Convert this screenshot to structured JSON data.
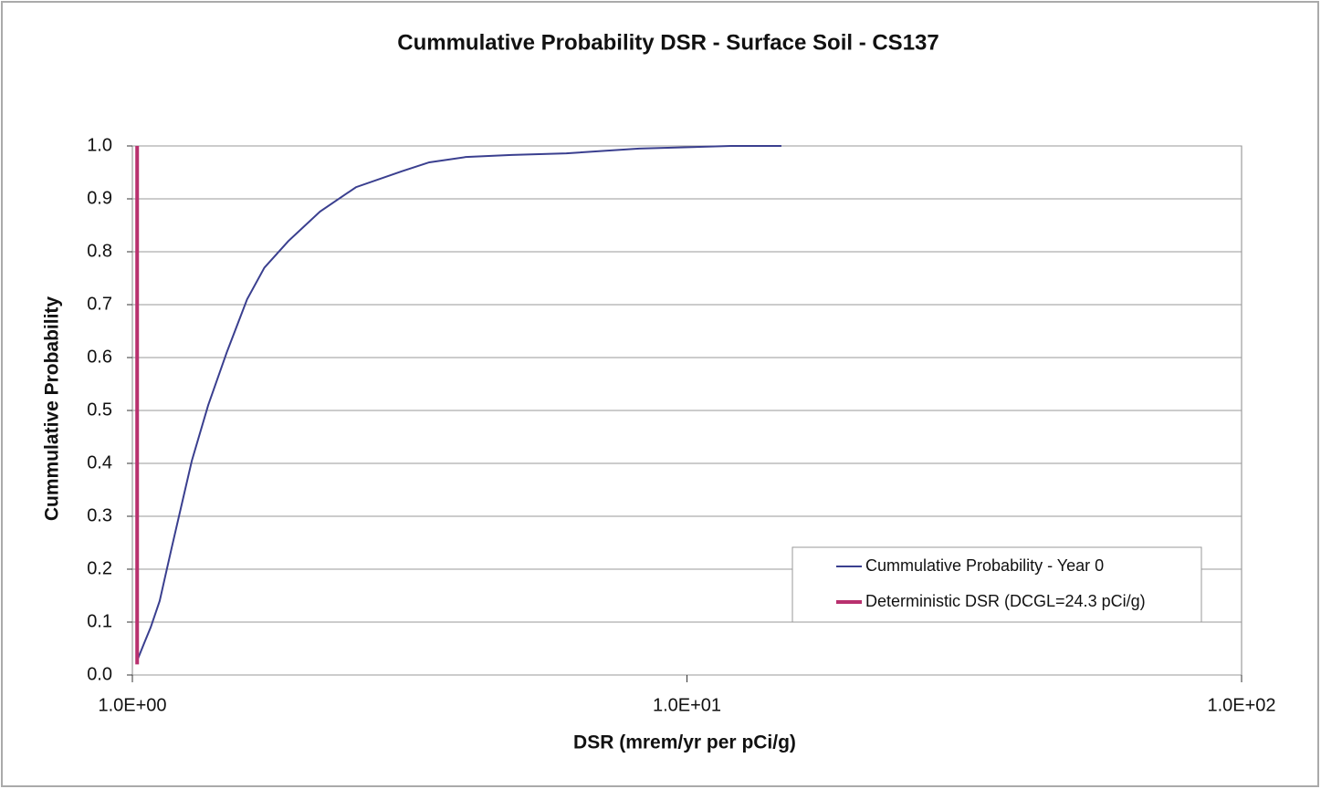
{
  "chart_data": {
    "type": "line",
    "title": "Cummulative Probability DSR - Surface Soil - CS137",
    "x_label": "DSR (mrem/yr per pCi/g)",
    "y_label": "Cummulative Probability",
    "xscale": "log",
    "xlim": [
      1,
      100
    ],
    "xticks": [
      {
        "value": 1,
        "label": "1.0E+00"
      },
      {
        "value": 10,
        "label": "1.0E+01"
      },
      {
        "value": 100,
        "label": "1.0E+02"
      }
    ],
    "ylim": [
      0,
      1
    ],
    "yticks": [
      {
        "value": 0,
        "label": "0.0"
      },
      {
        "value": 0.1,
        "label": "0.1"
      },
      {
        "value": 0.2,
        "label": "0.2"
      },
      {
        "value": 0.3,
        "label": "0.3"
      },
      {
        "value": 0.4,
        "label": "0.4"
      },
      {
        "value": 0.5,
        "label": "0.5"
      },
      {
        "value": 0.6,
        "label": "0.6"
      },
      {
        "value": 0.7,
        "label": "0.7"
      },
      {
        "value": 0.8,
        "label": "0.8"
      },
      {
        "value": 0.9,
        "label": "0.9"
      },
      {
        "value": 1,
        "label": "1.0"
      }
    ],
    "grid": true,
    "legend": "lower right",
    "series": [
      {
        "name": "Cummulative Probability - Year 0",
        "color": "#3a3f8f",
        "x": [
          1.019,
          1.05,
          1.079,
          1.12,
          1.177,
          1.232,
          1.28,
          1.37,
          1.48,
          1.61,
          1.73,
          1.91,
          2.18,
          2.53,
          3.06,
          3.43,
          3.99,
          4.83,
          6.06,
          8.2,
          12.0,
          14.8
        ],
        "values": [
          0.026,
          0.06,
          0.09,
          0.14,
          0.24,
          0.33,
          0.405,
          0.51,
          0.61,
          0.71,
          0.77,
          0.82,
          0.876,
          0.922,
          0.952,
          0.969,
          0.979,
          0.983,
          0.986,
          0.995,
          1.0,
          1.0
        ]
      },
      {
        "name": "Deterministic DSR (DCGL=24.3 pCi/g)",
        "color": "#b8306e",
        "x": [
          1.02,
          1.02
        ],
        "values": [
          0.02,
          1.0
        ]
      }
    ]
  }
}
